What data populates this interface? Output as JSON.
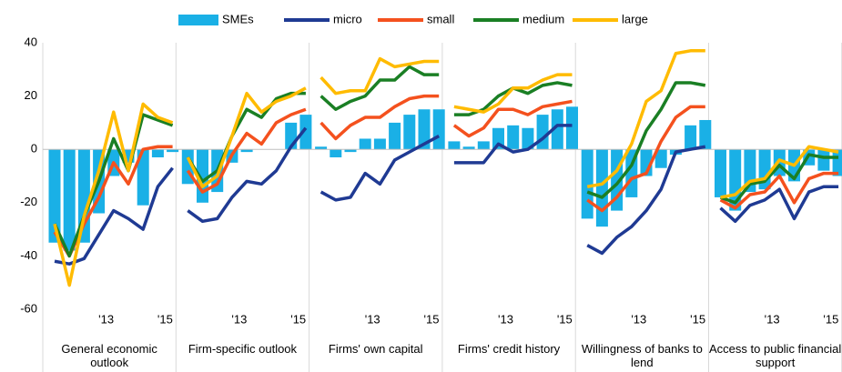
{
  "chart_data": [
    {
      "type": "combo",
      "title": "General economic outlook",
      "categories": [
        null,
        null,
        null,
        "'13",
        null,
        null,
        null,
        "'15",
        null
      ],
      "ylim": [
        -60,
        40
      ],
      "yticks": [
        -60,
        -40,
        -20,
        0,
        20,
        40
      ],
      "series": [
        {
          "name": "SMEs",
          "type": "bar",
          "color": "#1ab0e6",
          "values": [
            -35,
            -38,
            -35,
            -24,
            -10,
            -5,
            -21,
            -3,
            -1
          ]
        },
        {
          "name": "micro",
          "type": "line",
          "color": "#1f3a93",
          "values": [
            -42,
            -43,
            -41,
            -32,
            -23,
            -26,
            -30,
            -14,
            -7
          ]
        },
        {
          "name": "small",
          "type": "line",
          "color": "#f4511e",
          "values": [
            -31,
            -40,
            -28,
            -18,
            -5,
            -13,
            0,
            1,
            1
          ]
        },
        {
          "name": "medium",
          "type": "line",
          "color": "#1a7f24",
          "values": [
            -28,
            -40,
            -25,
            -12,
            4,
            -8,
            13,
            11,
            9
          ]
        },
        {
          "name": "large",
          "type": "line",
          "color": "#ffbb00",
          "values": [
            -28,
            -51,
            -25,
            -8,
            14,
            -8,
            17,
            12,
            10
          ]
        }
      ]
    },
    {
      "type": "combo",
      "title": "Firm-specific outlook",
      "categories": [
        null,
        null,
        null,
        "'13",
        null,
        null,
        null,
        "'15",
        null
      ],
      "ylim": [
        -60,
        40
      ],
      "series": [
        {
          "name": "SMEs",
          "type": "bar",
          "color": "#1ab0e6",
          "values": [
            -13,
            -20,
            -16,
            -5,
            -1,
            0,
            0,
            10,
            13
          ]
        },
        {
          "name": "micro",
          "type": "line",
          "color": "#1f3a93",
          "values": [
            -23,
            -27,
            -26,
            -18,
            -12,
            -13,
            -8,
            1,
            8
          ]
        },
        {
          "name": "small",
          "type": "line",
          "color": "#f4511e",
          "values": [
            -8,
            -16,
            -13,
            -2,
            6,
            2,
            10,
            13,
            15
          ]
        },
        {
          "name": "medium",
          "type": "line",
          "color": "#1a7f24",
          "values": [
            -3,
            -12,
            -8,
            5,
            15,
            12,
            19,
            21,
            21
          ]
        },
        {
          "name": "large",
          "type": "line",
          "color": "#ffbb00",
          "values": [
            -3,
            -14,
            -10,
            5,
            21,
            14,
            18,
            20,
            23
          ]
        }
      ]
    },
    {
      "type": "combo",
      "title": "Firms' own capital",
      "categories": [
        null,
        null,
        null,
        "'13",
        null,
        null,
        null,
        "'15",
        null
      ],
      "ylim": [
        -60,
        40
      ],
      "series": [
        {
          "name": "SMEs",
          "type": "bar",
          "color": "#1ab0e6",
          "values": [
            1,
            -3,
            -1,
            4,
            4,
            10,
            13,
            15,
            15
          ]
        },
        {
          "name": "micro",
          "type": "line",
          "color": "#1f3a93",
          "values": [
            -16,
            -19,
            -18,
            -9,
            -13,
            -4,
            -1,
            2,
            5
          ]
        },
        {
          "name": "small",
          "type": "line",
          "color": "#f4511e",
          "values": [
            10,
            4,
            9,
            12,
            12,
            16,
            19,
            20,
            20
          ]
        },
        {
          "name": "medium",
          "type": "line",
          "color": "#1a7f24",
          "values": [
            20,
            15,
            18,
            20,
            26,
            26,
            31,
            28,
            28
          ]
        },
        {
          "name": "large",
          "type": "line",
          "color": "#ffbb00",
          "values": [
            27,
            21,
            22,
            22,
            34,
            31,
            32,
            33,
            33
          ]
        }
      ]
    },
    {
      "type": "combo",
      "title": "Firms' credit history",
      "categories": [
        null,
        null,
        null,
        "'13",
        null,
        null,
        null,
        "'15",
        null
      ],
      "ylim": [
        -60,
        40
      ],
      "series": [
        {
          "name": "SMEs",
          "type": "bar",
          "color": "#1ab0e6",
          "values": [
            3,
            1,
            3,
            8,
            9,
            8,
            13,
            15,
            16
          ]
        },
        {
          "name": "micro",
          "type": "line",
          "color": "#1f3a93",
          "values": [
            -5,
            -5,
            -5,
            2,
            -1,
            0,
            4,
            9,
            9
          ]
        },
        {
          "name": "small",
          "type": "line",
          "color": "#f4511e",
          "values": [
            9,
            5,
            8,
            15,
            15,
            13,
            16,
            17,
            18
          ]
        },
        {
          "name": "medium",
          "type": "line",
          "color": "#1a7f24",
          "values": [
            13,
            13,
            15,
            20,
            23,
            21,
            24,
            25,
            24
          ]
        },
        {
          "name": "large",
          "type": "line",
          "color": "#ffbb00",
          "values": [
            16,
            15,
            14,
            17,
            23,
            23,
            26,
            28,
            28
          ]
        }
      ]
    },
    {
      "type": "combo",
      "title": "Willingness of banks to lend",
      "categories": [
        null,
        null,
        null,
        "'13",
        null,
        null,
        null,
        "'15",
        null
      ],
      "ylim": [
        -60,
        40
      ],
      "series": [
        {
          "name": "SMEs",
          "type": "bar",
          "color": "#1ab0e6",
          "values": [
            -26,
            -29,
            -23,
            -18,
            -10,
            -7,
            -2,
            9,
            11
          ]
        },
        {
          "name": "micro",
          "type": "line",
          "color": "#1f3a93",
          "values": [
            -36,
            -39,
            -33,
            -29,
            -23,
            -15,
            -1,
            0,
            1
          ]
        },
        {
          "name": "small",
          "type": "line",
          "color": "#f4511e",
          "values": [
            -19,
            -23,
            -18,
            -11,
            -9,
            3,
            12,
            16,
            16
          ]
        },
        {
          "name": "medium",
          "type": "line",
          "color": "#1a7f24",
          "values": [
            -16,
            -18,
            -13,
            -6,
            7,
            15,
            25,
            25,
            24
          ]
        },
        {
          "name": "large",
          "type": "line",
          "color": "#ffbb00",
          "values": [
            -14,
            -13,
            -8,
            2,
            18,
            22,
            36,
            37,
            37
          ]
        }
      ]
    },
    {
      "type": "combo",
      "title": "Access to public financial support",
      "categories": [
        null,
        null,
        null,
        "'13",
        null,
        null,
        null,
        "'15",
        null
      ],
      "ylim": [
        -60,
        40
      ],
      "series": [
        {
          "name": "SMEs",
          "type": "bar",
          "color": "#1ab0e6",
          "values": [
            -18,
            -23,
            -16,
            -15,
            -10,
            -12,
            -6,
            -8,
            -10
          ]
        },
        {
          "name": "micro",
          "type": "line",
          "color": "#1f3a93",
          "values": [
            -22,
            -27,
            -21,
            -19,
            -15,
            -26,
            -16,
            -14,
            -14
          ]
        },
        {
          "name": "small",
          "type": "line",
          "color": "#f4511e",
          "values": [
            -19,
            -22,
            -17,
            -16,
            -10,
            -20,
            -11,
            -9,
            -9
          ]
        },
        {
          "name": "medium",
          "type": "line",
          "color": "#1a7f24",
          "values": [
            -18,
            -20,
            -13,
            -12,
            -6,
            -11,
            -2,
            -3,
            -3
          ]
        },
        {
          "name": "large",
          "type": "line",
          "color": "#ffbb00",
          "values": [
            -18,
            -17,
            -12,
            -11,
            -4,
            -6,
            1,
            0,
            -1
          ]
        }
      ]
    }
  ]
}
